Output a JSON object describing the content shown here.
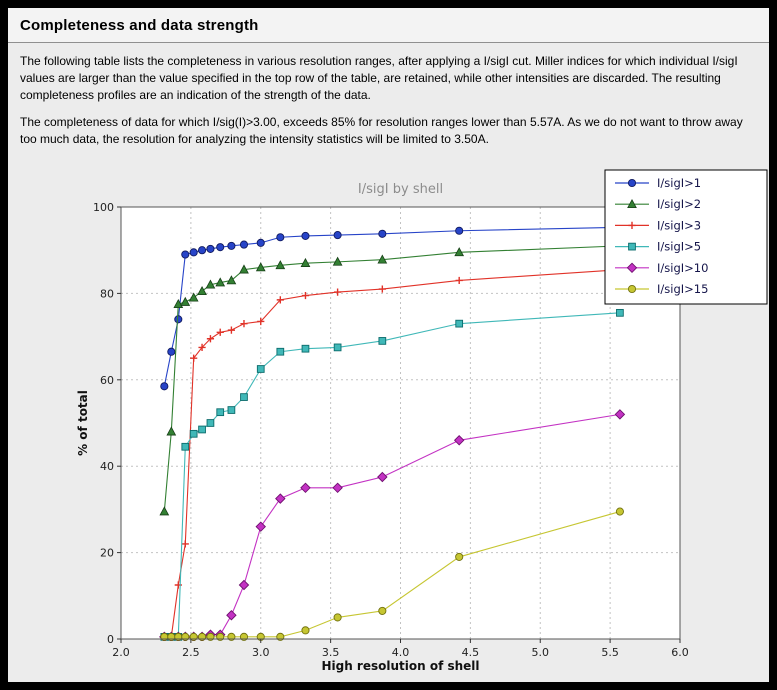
{
  "page": {
    "title": "Completeness and data strength",
    "paragraph1": "The following table lists the completeness in various resolution ranges, after applying a I/sigI cut. Miller indices for which individual I/sigI values are larger than the value specified in the top row of the table, are retained, while other intensities are discarded. The resulting completeness profiles are an indication of the strength of the data.",
    "paragraph2": "The completeness of data for which I/sig(I)>3.00, exceeds  85% for resolution ranges lower than 5.57A. As we do not want to throw away too much data, the resolution for analyzing the intensity statistics will be limited to 3.50A."
  },
  "chart_data": {
    "type": "line",
    "title": "I/sigI by shell",
    "xlabel": "High resolution of shell",
    "ylabel": "% of total",
    "xlim": [
      2.0,
      6.0
    ],
    "ylim": [
      0,
      100
    ],
    "xticks": [
      2.0,
      2.5,
      3.0,
      3.5,
      4.0,
      4.5,
      5.0,
      5.5,
      6.0
    ],
    "yticks": [
      0,
      20,
      40,
      60,
      80,
      100
    ],
    "grid": true,
    "grid_color": "#c2c2c2",
    "plot_bg": "#ffffff",
    "figure_bg": "#ececec",
    "axis_edge_color": "#555555",
    "title_color": "#8c8c8c",
    "legend_position": "upper right",
    "legend_text_color": "#15154a",
    "x": [
      2.31,
      2.36,
      2.41,
      2.46,
      2.52,
      2.58,
      2.64,
      2.71,
      2.79,
      2.88,
      3.0,
      3.14,
      3.32,
      3.55,
      3.87,
      4.42,
      5.57
    ],
    "series": [
      {
        "name": "I/sigI>1",
        "color": "#2744c8",
        "edge": "#101a60",
        "marker": "circle",
        "values": [
          58.5,
          66.5,
          74,
          89,
          89.5,
          90,
          90.3,
          90.7,
          91,
          91.3,
          91.7,
          93,
          93.3,
          93.5,
          93.8,
          94.5,
          95.3
        ]
      },
      {
        "name": "I/sigI>2",
        "color": "#338033",
        "edge": "#173f17",
        "marker": "triangle",
        "values": [
          29.5,
          48,
          77.5,
          78,
          79,
          80.5,
          82,
          82.5,
          83,
          85.5,
          86,
          86.5,
          87,
          87.3,
          87.8,
          89.5,
          91
        ]
      },
      {
        "name": "I/sigI>3",
        "color": "#e13228",
        "edge": "#7a120c",
        "marker": "plus",
        "values": [
          0.5,
          0.5,
          12.5,
          22,
          65,
          67.5,
          69.5,
          71,
          71.5,
          73,
          73.5,
          78.5,
          79.5,
          80.3,
          81,
          83,
          85.5
        ]
      },
      {
        "name": "I/sigI>5",
        "color": "#40b8b8",
        "edge": "#0b6b6b",
        "marker": "square",
        "values": [
          0.5,
          0.5,
          0.5,
          44.5,
          47.5,
          48.5,
          50,
          52.5,
          53,
          56,
          62.5,
          66.5,
          67.2,
          67.5,
          69,
          73,
          75.5
        ]
      },
      {
        "name": "I/sigI>10",
        "color": "#c332c3",
        "edge": "#6e106e",
        "marker": "diamond",
        "values": [
          0.5,
          0.5,
          0.5,
          0.5,
          0.5,
          0.5,
          1,
          1,
          5.5,
          12.5,
          26,
          32.5,
          35,
          35,
          37.5,
          46,
          52
        ]
      },
      {
        "name": "I/sigI>15",
        "color": "#c6c632",
        "edge": "#72720f",
        "marker": "circle",
        "values": [
          0.5,
          0.5,
          0.5,
          0.5,
          0.5,
          0.5,
          0.5,
          0.5,
          0.5,
          0.5,
          0.5,
          0.5,
          2,
          5,
          6.5,
          19,
          29.5
        ]
      }
    ]
  }
}
